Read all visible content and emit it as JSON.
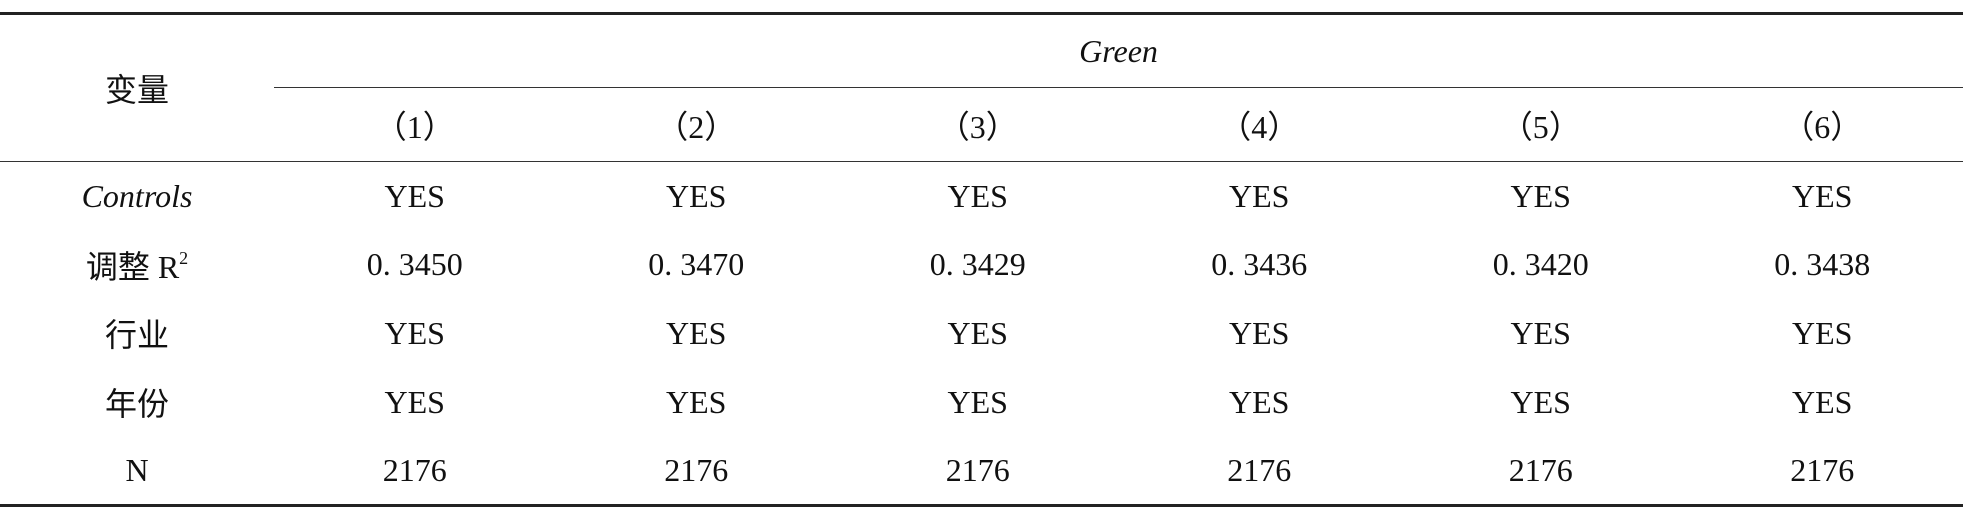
{
  "table": {
    "corner": "变量",
    "group": "Green",
    "columns": [
      "（1）",
      "（2）",
      "（3）",
      "（4）",
      "（5）",
      "（6）"
    ],
    "rows": [
      {
        "label": "Controls",
        "italic": true,
        "cells": [
          "YES",
          "YES",
          "YES",
          "YES",
          "YES",
          "YES"
        ]
      },
      {
        "label": "调整 R",
        "sup": "2",
        "cells": [
          "0. 3450",
          "0. 3470",
          "0. 3429",
          "0. 3436",
          "0. 3420",
          "0. 3438"
        ]
      },
      {
        "label": "行业",
        "cells": [
          "YES",
          "YES",
          "YES",
          "YES",
          "YES",
          "YES"
        ]
      },
      {
        "label": "年份",
        "cells": [
          "YES",
          "YES",
          "YES",
          "YES",
          "YES",
          "YES"
        ]
      },
      {
        "label": "N",
        "cells": [
          "2176",
          "2176",
          "2176",
          "2176",
          "2176",
          "2176"
        ]
      }
    ]
  }
}
